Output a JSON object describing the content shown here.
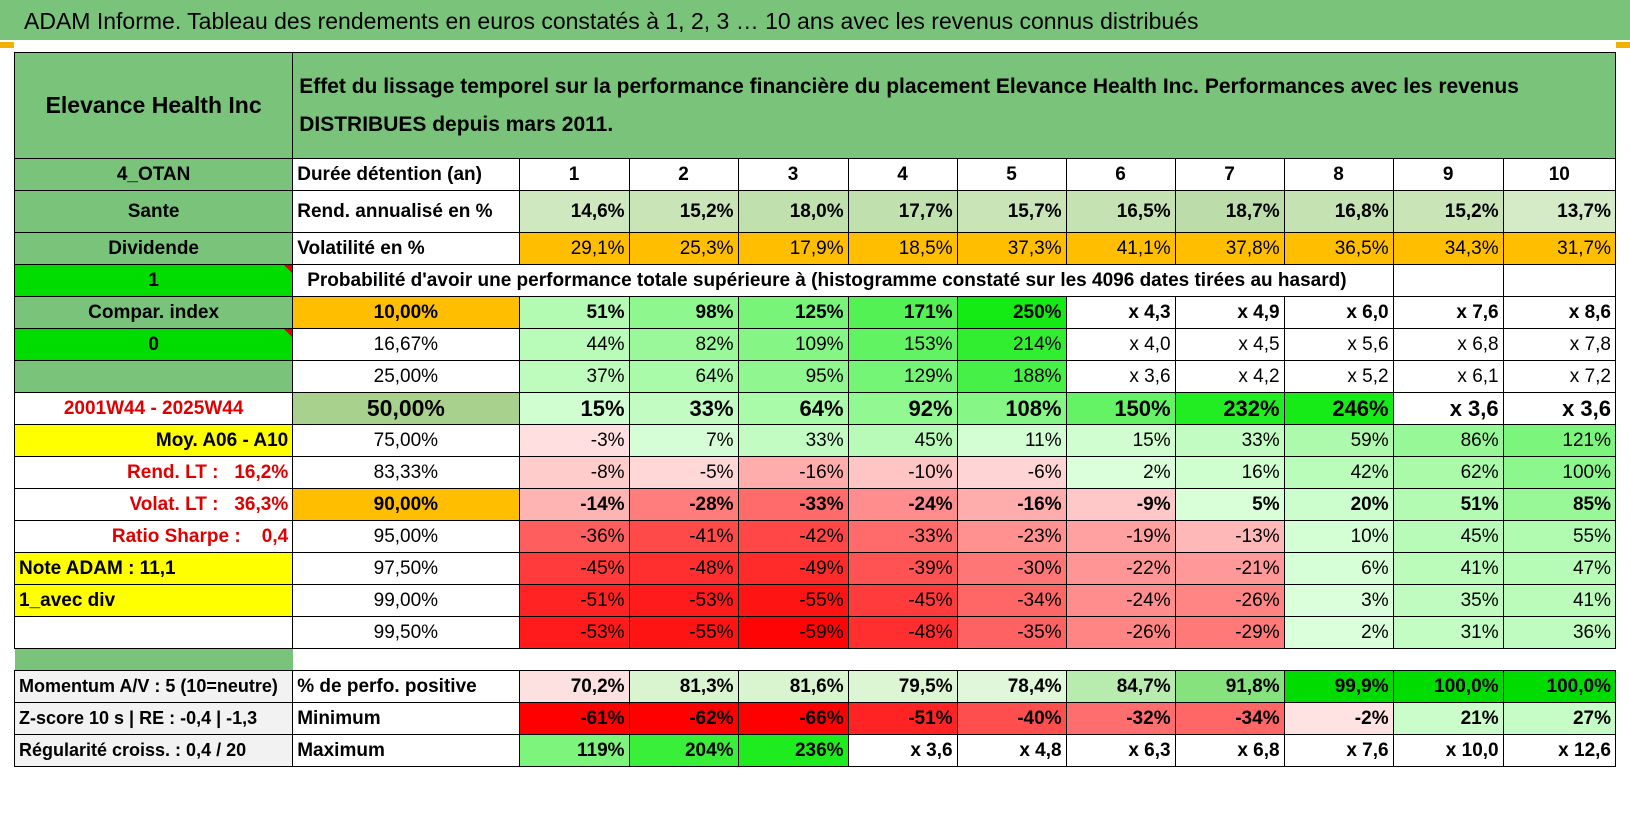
{
  "title": "ADAM Informe. Tableau des rendements en euros constatés à 1, 2, 3 … 10 ans avec les revenus connus distribués",
  "header": {
    "fund_name": "Elevance Health Inc",
    "description": "Effet du lissage temporel sur la performance financière du placement Elevance Health Inc. Performances avec les revenus DISTRIBUES depuis mars 2011."
  },
  "side": {
    "code": "4_OTAN",
    "sector": "Sante",
    "type": "Dividende",
    "flag1": "1",
    "compar_index": "Compar. index",
    "flag0": "0",
    "period": "2001W44 - 2025W44",
    "moy": "Moy. A06 - A10",
    "rend_lt_label": "Rend. LT :",
    "rend_lt_value": "16,2%",
    "volat_lt_label": "Volat. LT :",
    "volat_lt_value": "36,3%",
    "sharpe_label": "Ratio Sharpe :",
    "sharpe_value": "0,4",
    "note": "Note ADAM : 11,1",
    "avec_div": "1_avec div"
  },
  "duration": {
    "label": "Durée détention (an)",
    "years": [
      "1",
      "2",
      "3",
      "4",
      "5",
      "6",
      "7",
      "8",
      "9",
      "10"
    ]
  },
  "rend": {
    "label": "Rend. annualisé en %",
    "values": [
      "14,6%",
      "15,2%",
      "18,0%",
      "17,7%",
      "15,7%",
      "16,5%",
      "18,7%",
      "16,8%",
      "15,2%",
      "13,7%"
    ]
  },
  "volat": {
    "label": "Volatilité en %",
    "values": [
      "29,1%",
      "25,3%",
      "17,9%",
      "18,5%",
      "37,3%",
      "41,1%",
      "37,8%",
      "36,5%",
      "34,3%",
      "31,7%"
    ]
  },
  "prob_title": "Probabilité d'avoir une performance totale supérieure à (histogramme constaté sur les 4096 dates tirées au hasard)",
  "prob_rows": [
    {
      "p": "10,00%",
      "values": [
        "51%",
        "98%",
        "125%",
        "171%",
        "250%",
        "x 4,3",
        "x 4,9",
        "x 6,0",
        "x 7,6",
        "x 8,6"
      ]
    },
    {
      "p": "16,67%",
      "values": [
        "44%",
        "82%",
        "109%",
        "153%",
        "214%",
        "x 4,0",
        "x 4,5",
        "x 5,6",
        "x 6,8",
        "x 7,8"
      ]
    },
    {
      "p": "25,00%",
      "values": [
        "37%",
        "64%",
        "95%",
        "129%",
        "188%",
        "x 3,6",
        "x 4,2",
        "x 5,2",
        "x 6,1",
        "x 7,2"
      ]
    },
    {
      "p": "50,00%",
      "values": [
        "15%",
        "33%",
        "64%",
        "92%",
        "108%",
        "150%",
        "232%",
        "246%",
        "x 3,6",
        "x 3,6"
      ]
    },
    {
      "p": "75,00%",
      "values": [
        "-3%",
        "7%",
        "33%",
        "45%",
        "11%",
        "15%",
        "33%",
        "59%",
        "86%",
        "121%"
      ]
    },
    {
      "p": "83,33%",
      "values": [
        "-8%",
        "-5%",
        "-16%",
        "-10%",
        "-6%",
        "2%",
        "16%",
        "42%",
        "62%",
        "100%"
      ]
    },
    {
      "p": "90,00%",
      "values": [
        "-14%",
        "-28%",
        "-33%",
        "-24%",
        "-16%",
        "-9%",
        "5%",
        "20%",
        "51%",
        "85%"
      ]
    },
    {
      "p": "95,00%",
      "values": [
        "-36%",
        "-41%",
        "-42%",
        "-33%",
        "-23%",
        "-19%",
        "-13%",
        "10%",
        "45%",
        "55%"
      ]
    },
    {
      "p": "97,50%",
      "values": [
        "-45%",
        "-48%",
        "-49%",
        "-39%",
        "-30%",
        "-22%",
        "-21%",
        "6%",
        "41%",
        "47%"
      ]
    },
    {
      "p": "99,00%",
      "values": [
        "-51%",
        "-53%",
        "-55%",
        "-45%",
        "-34%",
        "-24%",
        "-26%",
        "3%",
        "35%",
        "41%"
      ]
    },
    {
      "p": "99,50%",
      "values": [
        "-53%",
        "-55%",
        "-59%",
        "-48%",
        "-35%",
        "-26%",
        "-29%",
        "2%",
        "31%",
        "36%"
      ]
    }
  ],
  "bottom": [
    {
      "side": "Momentum A/V : 5 (10=neutre)",
      "label": "% de perfo. positive",
      "values": [
        "70,2%",
        "81,3%",
        "81,6%",
        "79,5%",
        "78,4%",
        "84,7%",
        "91,8%",
        "99,9%",
        "100,0%",
        "100,0%"
      ]
    },
    {
      "side": "Z-score 10 s | RE : -0,4 | -1,3",
      "label": "Minimum",
      "values": [
        "-61%",
        "-62%",
        "-66%",
        "-51%",
        "-40%",
        "-32%",
        "-34%",
        "-2%",
        "21%",
        "27%"
      ]
    },
    {
      "side": "Régularité croiss. : 0,4 / 20",
      "label": "Maximum",
      "values": [
        "119%",
        "204%",
        "236%",
        "x 3,6",
        "x 4,8",
        "x 6,3",
        "x 6,8",
        "x 7,6",
        "x 10,0",
        "x 12,6"
      ]
    }
  ],
  "colors": {
    "header_green": "#79c47a",
    "bright_green": "#00dc00",
    "orange": "#ffbf00",
    "yellow": "#ffff00",
    "red_text": "#e00000"
  }
}
